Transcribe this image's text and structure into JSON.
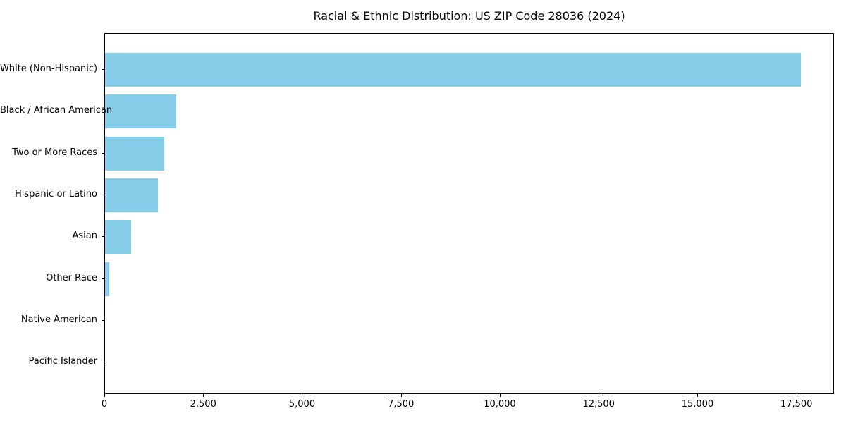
{
  "chart_data": {
    "type": "bar",
    "orientation": "horizontal",
    "title": "Racial & Ethnic Distribution: US ZIP Code 28036 (2024)",
    "categories": [
      "White (Non-Hispanic)",
      "Black / African American",
      "Two or More Races",
      "Hispanic or Latino",
      "Asian",
      "Other Race",
      "Native American",
      "Pacific Islander"
    ],
    "values": [
      17600,
      1800,
      1500,
      1340,
      660,
      100,
      0,
      0
    ],
    "xlabel": "",
    "ylabel": "",
    "xlim": [
      0,
      18450
    ],
    "x_ticks": [
      0,
      2500,
      5000,
      7500,
      10000,
      12500,
      15000,
      17500
    ],
    "x_tick_labels": [
      "0",
      "2,500",
      "5,000",
      "7,500",
      "10,000",
      "12,500",
      "15,000",
      "17,500"
    ],
    "bar_color": "#87CEEB",
    "axis_color": "#000000",
    "text_color": "#000000",
    "background_color": "#ffffff",
    "grid": false,
    "legend": null
  }
}
